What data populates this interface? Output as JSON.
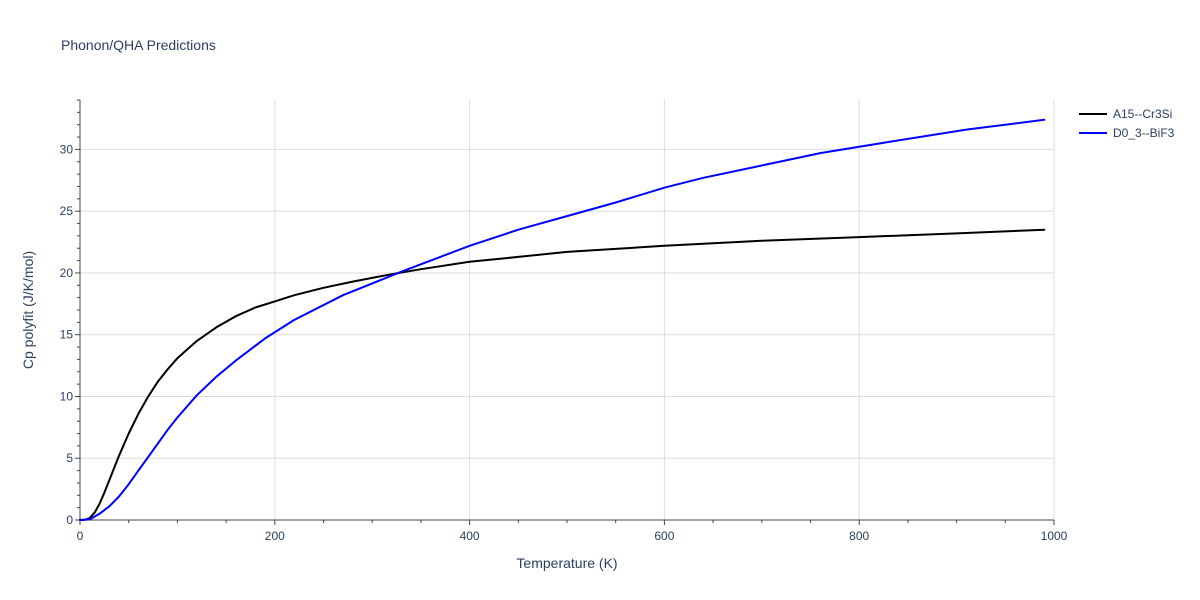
{
  "chart_data": {
    "type": "line",
    "title": "Phonon/QHA Predictions",
    "xlabel": "Temperature (K)",
    "ylabel": "Cp polyfit (J/K/mol)",
    "xlim": [
      0,
      1000
    ],
    "ylim": [
      0,
      34
    ],
    "x_ticks": [
      0,
      200,
      400,
      600,
      800,
      1000
    ],
    "y_ticks": [
      0,
      5,
      10,
      15,
      20,
      25,
      30
    ],
    "grid": true,
    "legend_position": "top-right",
    "series": [
      {
        "name": "A15--Cr3Si",
        "color": "#000000",
        "x": [
          0,
          5,
          10,
          15,
          20,
          25,
          30,
          40,
          50,
          60,
          70,
          80,
          90,
          100,
          110,
          120,
          140,
          160,
          180,
          200,
          220,
          250,
          280,
          300,
          320,
          350,
          400,
          450,
          500,
          600,
          700,
          800,
          900,
          990
        ],
        "y": [
          0,
          0.02,
          0.15,
          0.6,
          1.3,
          2.2,
          3.2,
          5.2,
          7.0,
          8.6,
          10.0,
          11.2,
          12.2,
          13.1,
          13.8,
          14.5,
          15.6,
          16.5,
          17.2,
          17.7,
          18.2,
          18.8,
          19.3,
          19.6,
          19.9,
          20.3,
          20.9,
          21.3,
          21.7,
          22.2,
          22.6,
          22.9,
          23.2,
          23.5
        ]
      },
      {
        "name": "D0_3--BiF3",
        "color": "#0000ff",
        "x": [
          0,
          10,
          20,
          30,
          40,
          50,
          60,
          70,
          80,
          90,
          100,
          120,
          140,
          160,
          190,
          220,
          270,
          330,
          400,
          450,
          500,
          550,
          600,
          610,
          640,
          700,
          760,
          830,
          910,
          990
        ],
        "y": [
          0,
          0.05,
          0.5,
          1.1,
          1.9,
          2.9,
          4.0,
          5.1,
          6.2,
          7.3,
          8.3,
          10.1,
          11.6,
          12.9,
          14.7,
          16.2,
          18.2,
          20.1,
          22.2,
          23.5,
          24.6,
          25.7,
          26.9,
          27.1,
          27.7,
          28.7,
          29.7,
          30.6,
          31.6,
          32.4
        ]
      }
    ]
  }
}
